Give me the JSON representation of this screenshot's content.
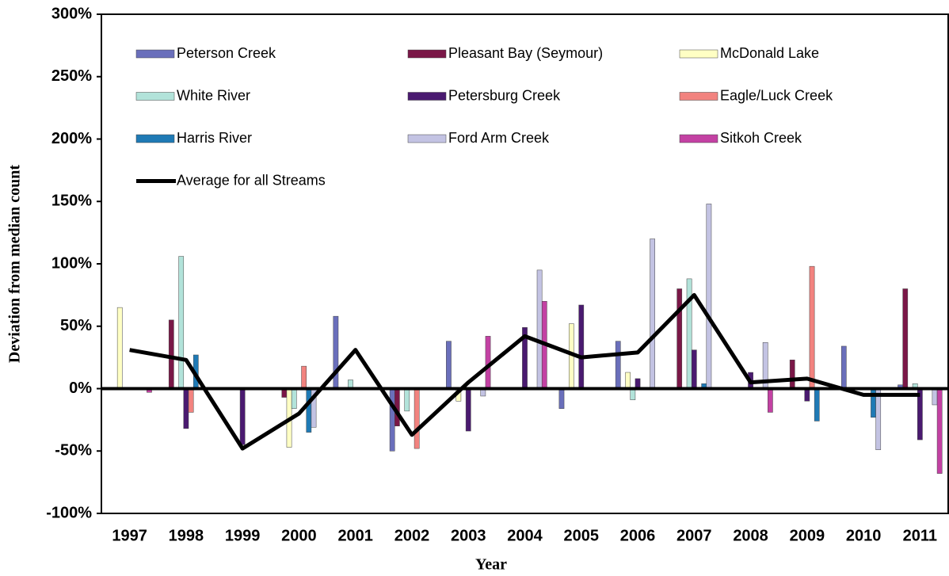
{
  "chart_data": {
    "type": "bar",
    "x_label": "Year",
    "y_label": "Deviation from median count",
    "categories": [
      "1997",
      "1998",
      "1999",
      "2000",
      "2001",
      "2002",
      "2003",
      "2004",
      "2005",
      "2006",
      "2007",
      "2008",
      "2009",
      "2010",
      "2011"
    ],
    "ylim": [
      -100,
      300
    ],
    "yticks": [
      {
        "value": -100,
        "label": "-100%"
      },
      {
        "value": -50,
        "label": "-50%"
      },
      {
        "value": 0,
        "label": "0%"
      },
      {
        "value": 50,
        "label": "50%"
      },
      {
        "value": 100,
        "label": "100%"
      },
      {
        "value": 150,
        "label": "150%"
      },
      {
        "value": 200,
        "label": "200%"
      },
      {
        "value": 250,
        "label": "250%"
      },
      {
        "value": 300,
        "label": "300%"
      }
    ],
    "series": [
      {
        "name": "Peterson Creek",
        "color": "#6a6fbb",
        "values": [
          null,
          null,
          null,
          null,
          58,
          -50,
          38,
          null,
          -16,
          38,
          null,
          null,
          null,
          34,
          3
        ]
      },
      {
        "name": "Pleasant Bay (Seymour)",
        "color": "#7a1747",
        "values": [
          null,
          55,
          null,
          -7,
          null,
          -30,
          null,
          null,
          null,
          null,
          80,
          null,
          23,
          null,
          80
        ]
      },
      {
        "name": "McDonald Lake",
        "color": "#ffffc4",
        "values": [
          65,
          null,
          null,
          -47,
          null,
          null,
          -10,
          null,
          52,
          13,
          null,
          null,
          null,
          null,
          null
        ]
      },
      {
        "name": "White River",
        "color": "#b2e3da",
        "values": [
          null,
          106,
          null,
          -16,
          7,
          -18,
          null,
          null,
          null,
          -9,
          88,
          null,
          null,
          null,
          4
        ]
      },
      {
        "name": "Petersburg Creek",
        "color": "#4a1a70",
        "values": [
          null,
          -32,
          -45,
          null,
          null,
          null,
          -34,
          49,
          67,
          8,
          31,
          13,
          -10,
          null,
          -41
        ]
      },
      {
        "name": "Eagle/Luck Creek",
        "color": "#f2837f",
        "values": [
          null,
          -19,
          null,
          18,
          null,
          -48,
          null,
          null,
          null,
          null,
          null,
          null,
          98,
          null,
          null
        ]
      },
      {
        "name": "Harris River",
        "color": "#1f7ab5",
        "values": [
          null,
          27,
          null,
          -35,
          null,
          null,
          null,
          null,
          null,
          null,
          4,
          null,
          -26,
          -23,
          null
        ]
      },
      {
        "name": "Ford Arm Creek",
        "color": "#c3c3e3",
        "values": [
          null,
          null,
          null,
          -31,
          null,
          null,
          -6,
          95,
          null,
          120,
          148,
          37,
          null,
          -49,
          -13
        ]
      },
      {
        "name": "Sitkoh Creek",
        "color": "#c341a3",
        "values": [
          -3,
          null,
          null,
          null,
          null,
          null,
          42,
          70,
          null,
          null,
          null,
          -19,
          null,
          null,
          -68
        ]
      },
      {
        "name": "Average for all Streams",
        "type": "line",
        "color": "#000000",
        "values": [
          31,
          23,
          -48,
          -20,
          31,
          -37,
          5,
          42,
          25,
          29,
          75,
          5,
          8,
          -5,
          -5
        ]
      }
    ]
  }
}
